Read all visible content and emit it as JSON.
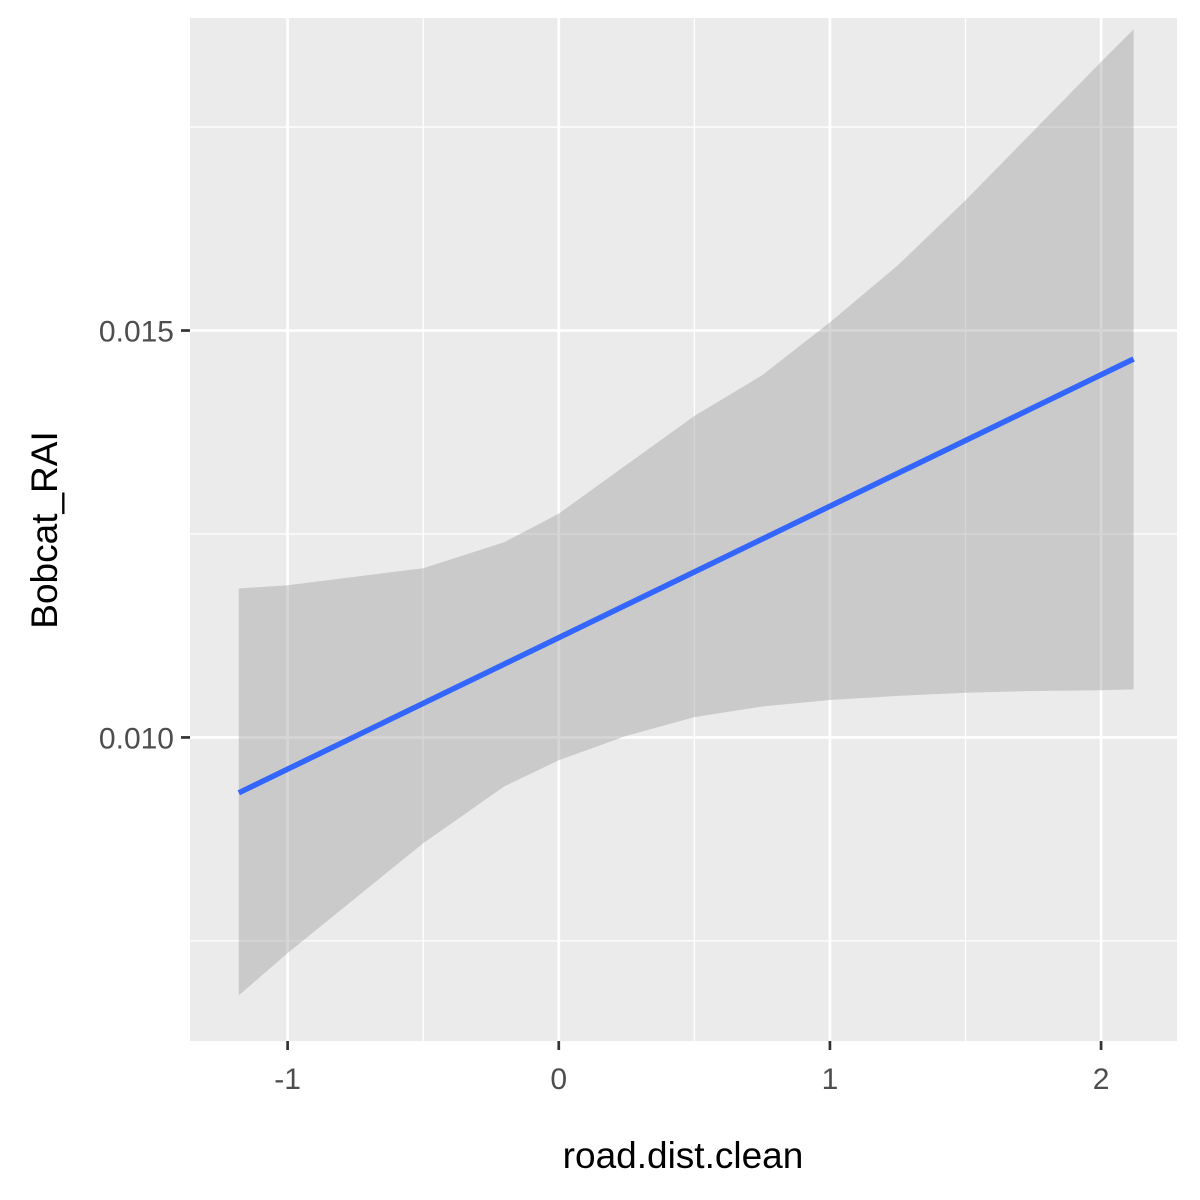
{
  "chart_data": {
    "type": "line",
    "title": "",
    "xlabel": "road.dist.clean",
    "ylabel": "Bobcat_RAI",
    "xlim": [
      -1.36,
      2.28
    ],
    "ylim": [
      0.00627,
      0.01884
    ],
    "x_ticks": [
      {
        "value": -1,
        "label": "-1"
      },
      {
        "value": 0,
        "label": "0"
      },
      {
        "value": 1,
        "label": "1"
      },
      {
        "value": 2,
        "label": "2"
      }
    ],
    "x_minor": [
      -0.5,
      0.5,
      1.5
    ],
    "y_ticks": [
      {
        "value": 0.01,
        "label": "0.010"
      },
      {
        "value": 0.015,
        "label": "0.015"
      }
    ],
    "y_minor": [
      0.0075,
      0.0125,
      0.0175
    ],
    "grid": true,
    "legend": "none",
    "series": [
      {
        "x": [
          -1.18,
          2.12
        ],
        "y": [
          0.00932,
          0.01465
        ],
        "color": "#3366ff",
        "confidence_band": {
          "x": [
            -1.18,
            -1.0,
            -0.5,
            -0.2,
            0.0,
            0.25,
            0.5,
            0.75,
            1.0,
            1.25,
            1.5,
            1.75,
            2.0,
            2.12
          ],
          "lower": [
            0.00683,
            0.00735,
            0.0087,
            0.0094,
            0.00972,
            0.01002,
            0.01025,
            0.01038,
            0.01046,
            0.01051,
            0.01055,
            0.01057,
            0.01058,
            0.01059
          ],
          "upper": [
            0.01183,
            0.01187,
            0.01208,
            0.0124,
            0.01275,
            0.01335,
            0.01395,
            0.01445,
            0.0151,
            0.0158,
            0.0166,
            0.01745,
            0.0183,
            0.0187
          ],
          "color": "#999999"
        }
      }
    ]
  },
  "colors": {
    "panel_background": "#ebebeb",
    "grid_major": "#ffffff",
    "line": "#3366ff",
    "band": "#999999"
  }
}
